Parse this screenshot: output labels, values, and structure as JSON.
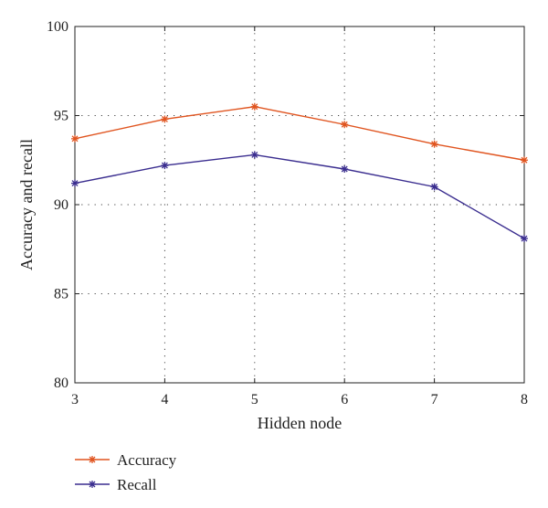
{
  "chart_data": {
    "type": "line",
    "x": [
      3,
      4,
      5,
      6,
      7,
      8
    ],
    "series": [
      {
        "name": "Accuracy",
        "color": "#e0541f",
        "values": [
          93.7,
          94.8,
          95.5,
          94.5,
          93.4,
          92.5
        ]
      },
      {
        "name": "Recall",
        "color": "#3a2d8f",
        "values": [
          91.2,
          92.2,
          92.8,
          92.0,
          91.0,
          88.1
        ]
      }
    ],
    "xlabel": "Hidden node",
    "ylabel": "Accuracy and recall",
    "xlim": [
      3,
      8
    ],
    "ylim": [
      80,
      100
    ],
    "xticks": [
      3,
      4,
      5,
      6,
      7,
      8
    ],
    "yticks": [
      80,
      85,
      90,
      95,
      100
    ],
    "grid": true,
    "legend_position": "bottom-left"
  }
}
